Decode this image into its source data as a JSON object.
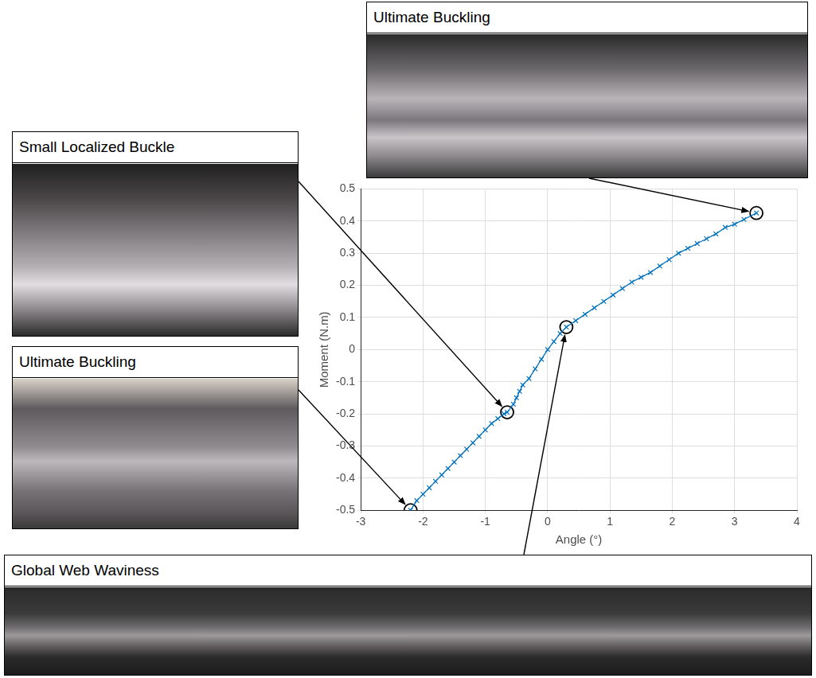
{
  "chart_data": {
    "type": "line",
    "x_label": "Angle (°)",
    "y_label": "Moment (N.m)",
    "series": [
      {
        "color": "#0072bd",
        "marker": "x",
        "line_style": "solid",
        "x": [
          -2.2,
          -2.1,
          -2.0,
          -1.9,
          -1.8,
          -1.7,
          -1.6,
          -1.5,
          -1.4,
          -1.3,
          -1.2,
          -1.1,
          -1.0,
          -0.9,
          -0.8,
          -0.7,
          -0.65,
          -0.55,
          -0.5,
          -0.45,
          -0.4,
          -0.3,
          -0.2,
          -0.1,
          0.0,
          0.1,
          0.2,
          0.3,
          0.45,
          0.6,
          0.75,
          0.9,
          1.05,
          1.2,
          1.35,
          1.5,
          1.65,
          1.8,
          1.95,
          2.1,
          2.25,
          2.4,
          2.55,
          2.7,
          2.85,
          3.0,
          3.15,
          3.35
        ],
        "values": [
          -0.5,
          -0.47,
          -0.45,
          -0.43,
          -0.41,
          -0.39,
          -0.37,
          -0.35,
          -0.33,
          -0.31,
          -0.29,
          -0.27,
          -0.25,
          -0.23,
          -0.215,
          -0.2,
          -0.195,
          -0.17,
          -0.15,
          -0.13,
          -0.11,
          -0.09,
          -0.06,
          -0.03,
          0.0,
          0.025,
          0.05,
          0.07,
          0.09,
          0.11,
          0.13,
          0.15,
          0.17,
          0.19,
          0.21,
          0.225,
          0.24,
          0.26,
          0.28,
          0.3,
          0.315,
          0.33,
          0.345,
          0.36,
          0.38,
          0.39,
          0.405,
          0.425
        ]
      }
    ],
    "xlim": [
      -3,
      4
    ],
    "xticks": [
      -3,
      -2,
      -1,
      0,
      1,
      2,
      3,
      4
    ],
    "ylim": [
      -0.5,
      0.5
    ],
    "yticks": [
      -0.5,
      -0.4,
      -0.3,
      -0.2,
      -0.1,
      0,
      0.1,
      0.2,
      0.3,
      0.4,
      0.5
    ],
    "grid": true,
    "annotations": [
      {
        "label": "Ultimate Buckling",
        "x": 3.35,
        "y": 0.425
      },
      {
        "label": "Small Localized Buckle",
        "x": -0.65,
        "y": -0.195
      },
      {
        "label": "Ultimate Buckling",
        "x": -2.2,
        "y": -0.5
      },
      {
        "label": "Global Web Waviness",
        "x": 0.3,
        "y": 0.07
      }
    ]
  }
}
